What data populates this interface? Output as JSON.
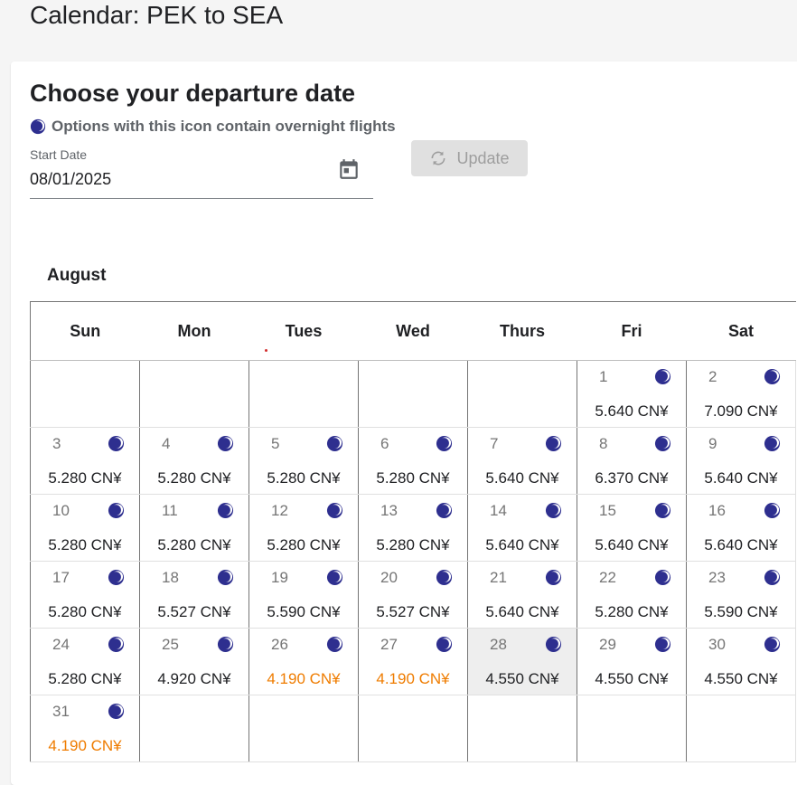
{
  "page_title": "Calendar: PEK to SEA",
  "heading": "Choose your departure date",
  "overnight_note": "Options with this icon contain overnight flights",
  "start_date": {
    "label": "Start Date",
    "value": "08/01/2025"
  },
  "update_button": {
    "label": "Update",
    "icon": "refresh-icon"
  },
  "month": "August",
  "weekdays": [
    "Sun",
    "Mon",
    "Tues",
    "Wed",
    "Thurs",
    "Fri",
    "Sat"
  ],
  "colors": {
    "cheap_price": "#ef7c00",
    "moon": "#2e2f8f",
    "selected_cell": "#eeeeee"
  },
  "days": [
    {
      "day": "1",
      "price": "5.640 CN¥",
      "overnight": true,
      "cheap": false
    },
    {
      "day": "2",
      "price": "7.090 CN¥",
      "overnight": true,
      "cheap": false
    },
    {
      "day": "3",
      "price": "5.280 CN¥",
      "overnight": true,
      "cheap": false
    },
    {
      "day": "4",
      "price": "5.280 CN¥",
      "overnight": true,
      "cheap": false
    },
    {
      "day": "5",
      "price": "5.280 CN¥",
      "overnight": true,
      "cheap": false
    },
    {
      "day": "6",
      "price": "5.280 CN¥",
      "overnight": true,
      "cheap": false
    },
    {
      "day": "7",
      "price": "5.640 CN¥",
      "overnight": true,
      "cheap": false
    },
    {
      "day": "8",
      "price": "6.370 CN¥",
      "overnight": true,
      "cheap": false
    },
    {
      "day": "9",
      "price": "5.640 CN¥",
      "overnight": true,
      "cheap": false
    },
    {
      "day": "10",
      "price": "5.280 CN¥",
      "overnight": true,
      "cheap": false
    },
    {
      "day": "11",
      "price": "5.280 CN¥",
      "overnight": true,
      "cheap": false
    },
    {
      "day": "12",
      "price": "5.280 CN¥",
      "overnight": true,
      "cheap": false
    },
    {
      "day": "13",
      "price": "5.280 CN¥",
      "overnight": true,
      "cheap": false
    },
    {
      "day": "14",
      "price": "5.640 CN¥",
      "overnight": true,
      "cheap": false
    },
    {
      "day": "15",
      "price": "5.640 CN¥",
      "overnight": true,
      "cheap": false
    },
    {
      "day": "16",
      "price": "5.640 CN¥",
      "overnight": true,
      "cheap": false
    },
    {
      "day": "17",
      "price": "5.280 CN¥",
      "overnight": true,
      "cheap": false
    },
    {
      "day": "18",
      "price": "5.527 CN¥",
      "overnight": true,
      "cheap": false
    },
    {
      "day": "19",
      "price": "5.590 CN¥",
      "overnight": true,
      "cheap": false
    },
    {
      "day": "20",
      "price": "5.527 CN¥",
      "overnight": true,
      "cheap": false
    },
    {
      "day": "21",
      "price": "5.640 CN¥",
      "overnight": true,
      "cheap": false
    },
    {
      "day": "22",
      "price": "5.280 CN¥",
      "overnight": true,
      "cheap": false
    },
    {
      "day": "23",
      "price": "5.590 CN¥",
      "overnight": true,
      "cheap": false
    },
    {
      "day": "24",
      "price": "5.280 CN¥",
      "overnight": true,
      "cheap": false
    },
    {
      "day": "25",
      "price": "4.920 CN¥",
      "overnight": true,
      "cheap": false
    },
    {
      "day": "26",
      "price": "4.190 CN¥",
      "overnight": true,
      "cheap": true
    },
    {
      "day": "27",
      "price": "4.190 CN¥",
      "overnight": true,
      "cheap": true
    },
    {
      "day": "28",
      "price": "4.550 CN¥",
      "overnight": true,
      "cheap": false,
      "highlight": true
    },
    {
      "day": "29",
      "price": "4.550 CN¥",
      "overnight": true,
      "cheap": false
    },
    {
      "day": "30",
      "price": "4.550 CN¥",
      "overnight": true,
      "cheap": false
    },
    {
      "day": "31",
      "price": "4.190 CN¥",
      "overnight": true,
      "cheap": true
    }
  ]
}
